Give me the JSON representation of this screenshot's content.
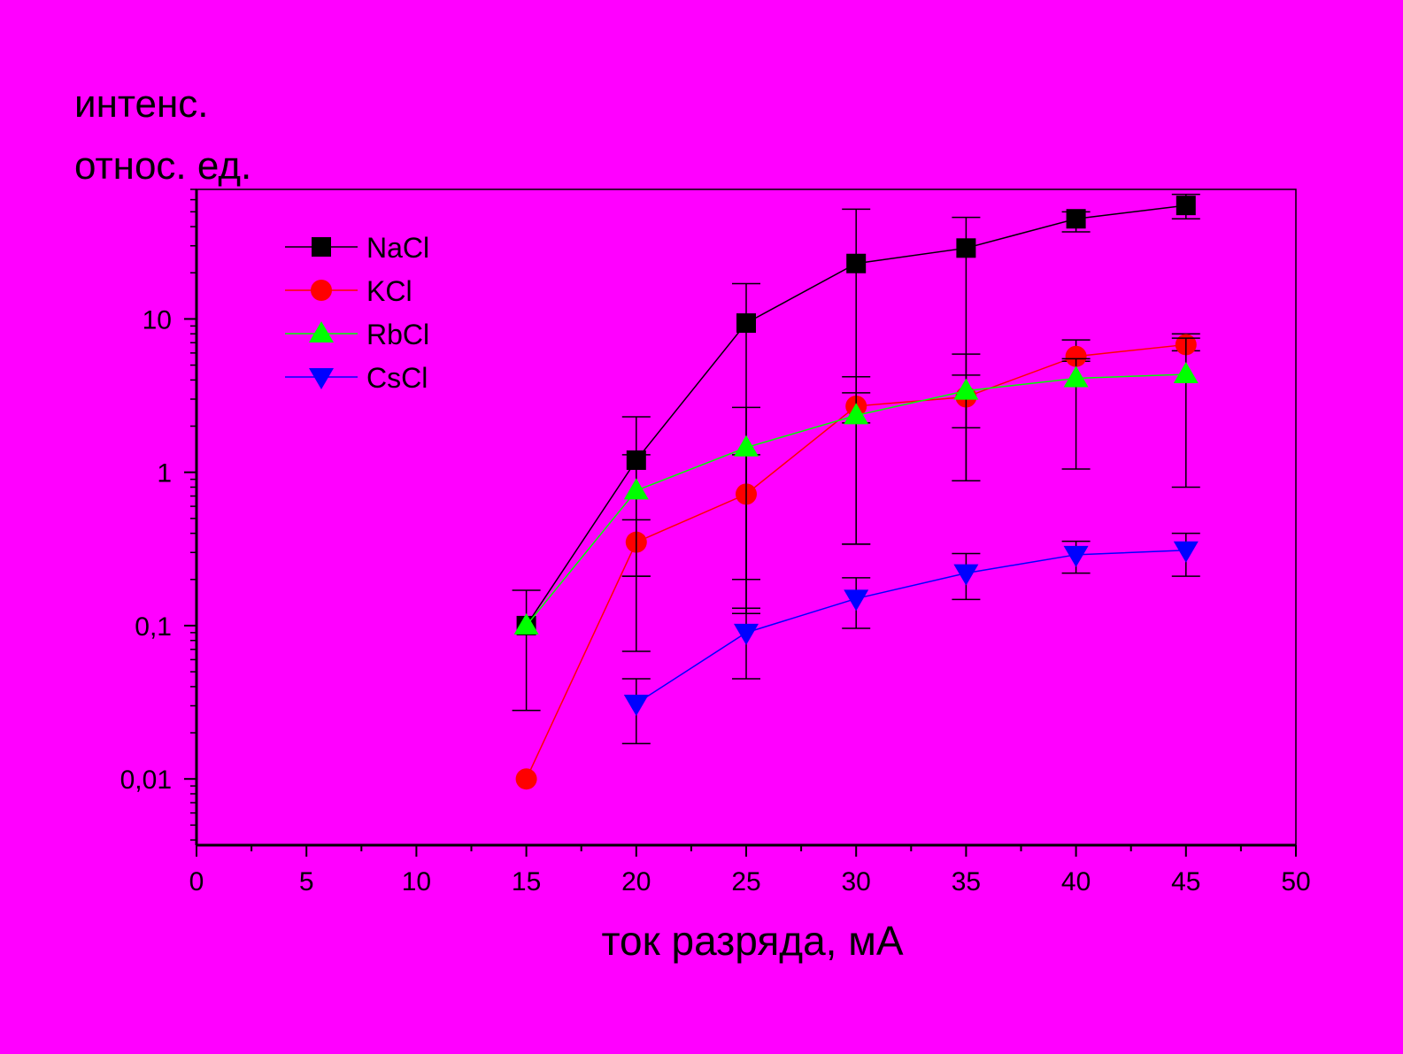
{
  "chart_data": {
    "type": "line",
    "xlabel": "ток разряда, мА",
    "ylabel_lines": [
      "интенс.",
      "относ. ед."
    ],
    "xlim": [
      0,
      50
    ],
    "x_ticks": [
      "0",
      "5",
      "10",
      "15",
      "20",
      "25",
      "30",
      "35",
      "40",
      "45",
      "50"
    ],
    "y_scale": "log",
    "ylim": [
      0.0037,
      70
    ],
    "y_ticks": [
      {
        "value": 0.01,
        "label": "0,01"
      },
      {
        "value": 0.1,
        "label": "0,1"
      },
      {
        "value": 1,
        "label": "1"
      },
      {
        "value": 10,
        "label": "10"
      }
    ],
    "grid": false,
    "legend_position": "top-left",
    "series": [
      {
        "name": "NaCl",
        "color": "#000000",
        "marker": "square",
        "x": [
          15,
          20,
          25,
          30,
          35,
          40,
          45
        ],
        "y": [
          0.1,
          1.2,
          9.4,
          23,
          29,
          45,
          55
        ],
        "err_low": [
          0.028,
          0.21,
          0.13,
          0.34,
          0.88,
          37,
          45
        ],
        "err_high": [
          0.17,
          2.3,
          17,
          52,
          46,
          50,
          65
        ]
      },
      {
        "name": "KCl",
        "color": "#FF0000",
        "marker": "circle",
        "x": [
          15,
          20,
          25,
          30,
          35,
          40,
          45
        ],
        "y": [
          0.01,
          0.35,
          0.72,
          2.7,
          3.1,
          5.7,
          6.8
        ],
        "err_low": [
          null,
          0.068,
          0.12,
          2.1,
          1.95,
          5.3,
          6.2
        ],
        "err_high": [
          null,
          0.49,
          1.3,
          3.3,
          4.3,
          7.3,
          8.0
        ]
      },
      {
        "name": "RbCl",
        "color": "#00FF00",
        "marker": "triangle-up",
        "x": [
          15,
          20,
          25,
          30,
          35,
          40,
          45
        ],
        "y": [
          0.1,
          0.76,
          1.45,
          2.35,
          3.4,
          4.1,
          4.35
        ],
        "err_low": [
          null,
          0.21,
          0.2,
          0.34,
          0.88,
          1.05,
          0.8
        ],
        "err_high": [
          null,
          1.3,
          2.65,
          4.2,
          5.9,
          5.5,
          7.5
        ]
      },
      {
        "name": "CsCl",
        "color": "#0000FF",
        "marker": "triangle-down",
        "x": [
          20,
          25,
          30,
          35,
          40,
          45
        ],
        "y": [
          0.031,
          0.09,
          0.15,
          0.22,
          0.29,
          0.31
        ],
        "err_low": [
          0.017,
          0.045,
          0.096,
          0.148,
          0.22,
          0.21
        ],
        "err_high": [
          0.045,
          0.13,
          0.205,
          0.295,
          0.355,
          0.4
        ]
      }
    ]
  }
}
